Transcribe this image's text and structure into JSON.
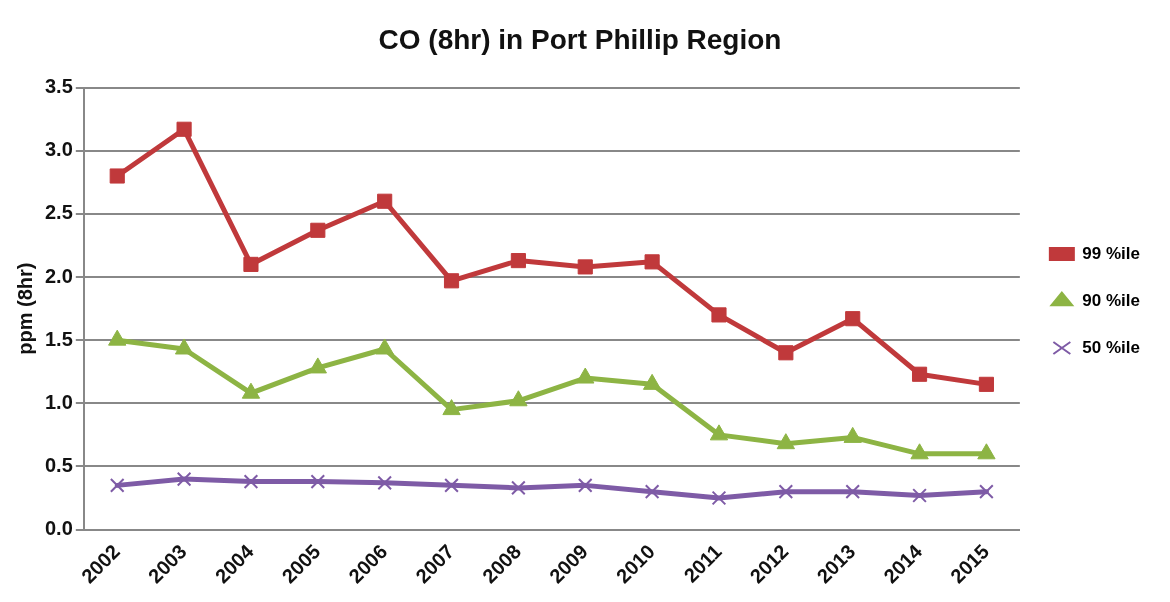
{
  "chart_data": {
    "type": "line",
    "title": "CO (8hr) in Port Phillip Region",
    "ylabel": "ppm (8hr)",
    "categories": [
      "2002",
      "2003",
      "2004",
      "2005",
      "2006",
      "2007",
      "2008",
      "2009",
      "2010",
      "2011",
      "2012",
      "2013",
      "2014",
      "2015"
    ],
    "series": [
      {
        "name": "99 %ile",
        "color": "#c0393b",
        "marker": "square",
        "values": [
          2.8,
          3.17,
          2.1,
          2.37,
          2.6,
          1.97,
          2.13,
          2.08,
          2.12,
          1.7,
          1.4,
          1.67,
          1.23,
          1.15
        ]
      },
      {
        "name": "90 %ile",
        "color": "#8db444",
        "marker": "triangle",
        "values": [
          1.5,
          1.43,
          1.08,
          1.28,
          1.43,
          0.95,
          1.02,
          1.2,
          1.15,
          0.75,
          0.68,
          0.73,
          0.6,
          0.6
        ]
      },
      {
        "name": "50 %ile",
        "color": "#7e5ba6",
        "marker": "cross",
        "values": [
          0.35,
          0.4,
          0.38,
          0.38,
          0.37,
          0.35,
          0.33,
          0.35,
          0.3,
          0.25,
          0.3,
          0.3,
          0.27,
          0.3
        ]
      }
    ],
    "ylim": [
      0,
      3.5
    ],
    "yticks": [
      {
        "value": 0,
        "label": "0.0"
      },
      {
        "value": 0.5,
        "label": "0.5"
      },
      {
        "value": 1,
        "label": "1.0"
      },
      {
        "value": 1.5,
        "label": "1.5"
      },
      {
        "value": 2,
        "label": "2.0"
      },
      {
        "value": 2.5,
        "label": "2.5"
      },
      {
        "value": 3,
        "label": "3.0"
      },
      {
        "value": 3.5,
        "label": "3.5"
      }
    ],
    "grid": "y",
    "legend": "right",
    "line_style": "solid"
  }
}
